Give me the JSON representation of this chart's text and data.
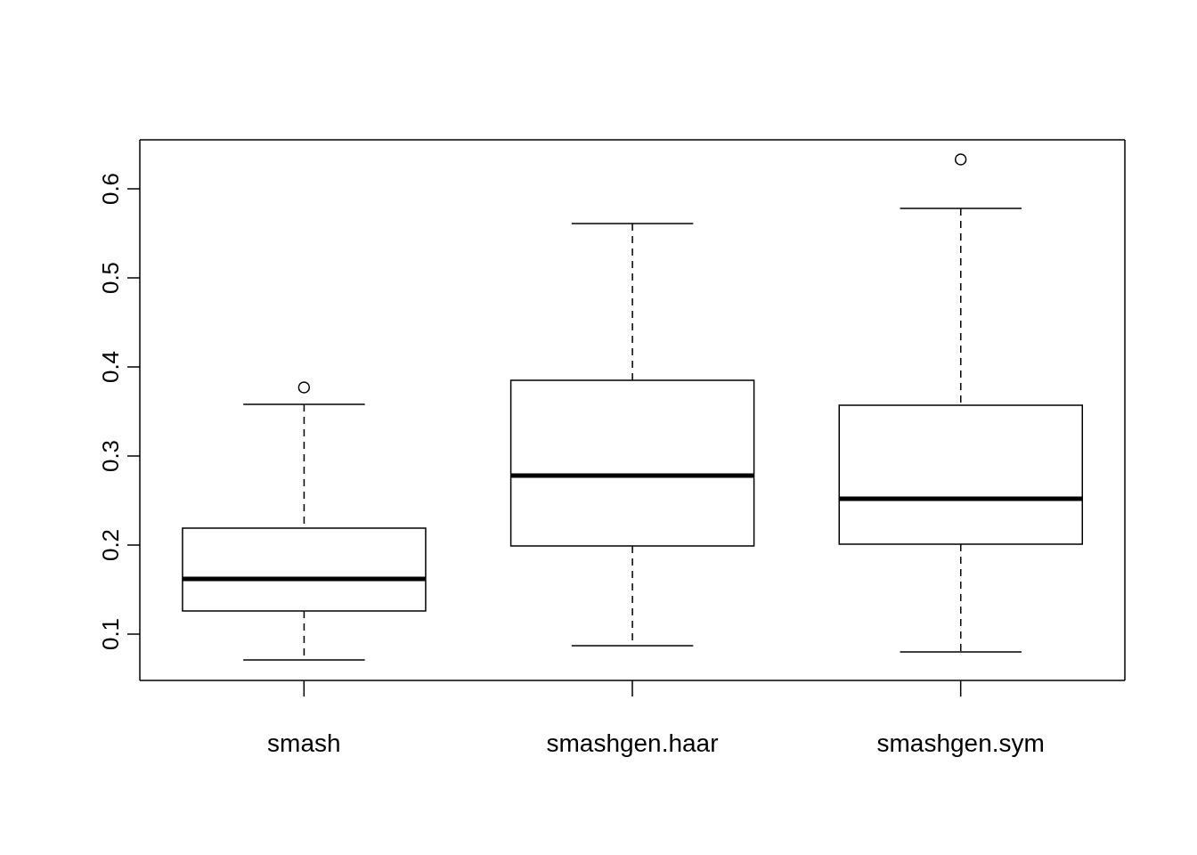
{
  "chart_data": {
    "type": "box",
    "categories": [
      "smash",
      "smashgen.haar",
      "smashgen.sym"
    ],
    "boxes": [
      {
        "low": 0.071,
        "q1": 0.126,
        "median": 0.162,
        "q3": 0.219,
        "high": 0.358,
        "outliers": [
          0.377
        ]
      },
      {
        "low": 0.087,
        "q1": 0.199,
        "median": 0.278,
        "q3": 0.385,
        "high": 0.561
      },
      {
        "low": 0.08,
        "q1": 0.201,
        "median": 0.252,
        "q3": 0.357,
        "high": 0.578,
        "outliers": [
          0.633
        ]
      }
    ],
    "color": "#000000",
    "ylim": [
      0.048,
      0.655
    ],
    "yticks": [
      0.1,
      0.2,
      0.3,
      0.4,
      0.5,
      0.6
    ],
    "marker": "circle"
  }
}
